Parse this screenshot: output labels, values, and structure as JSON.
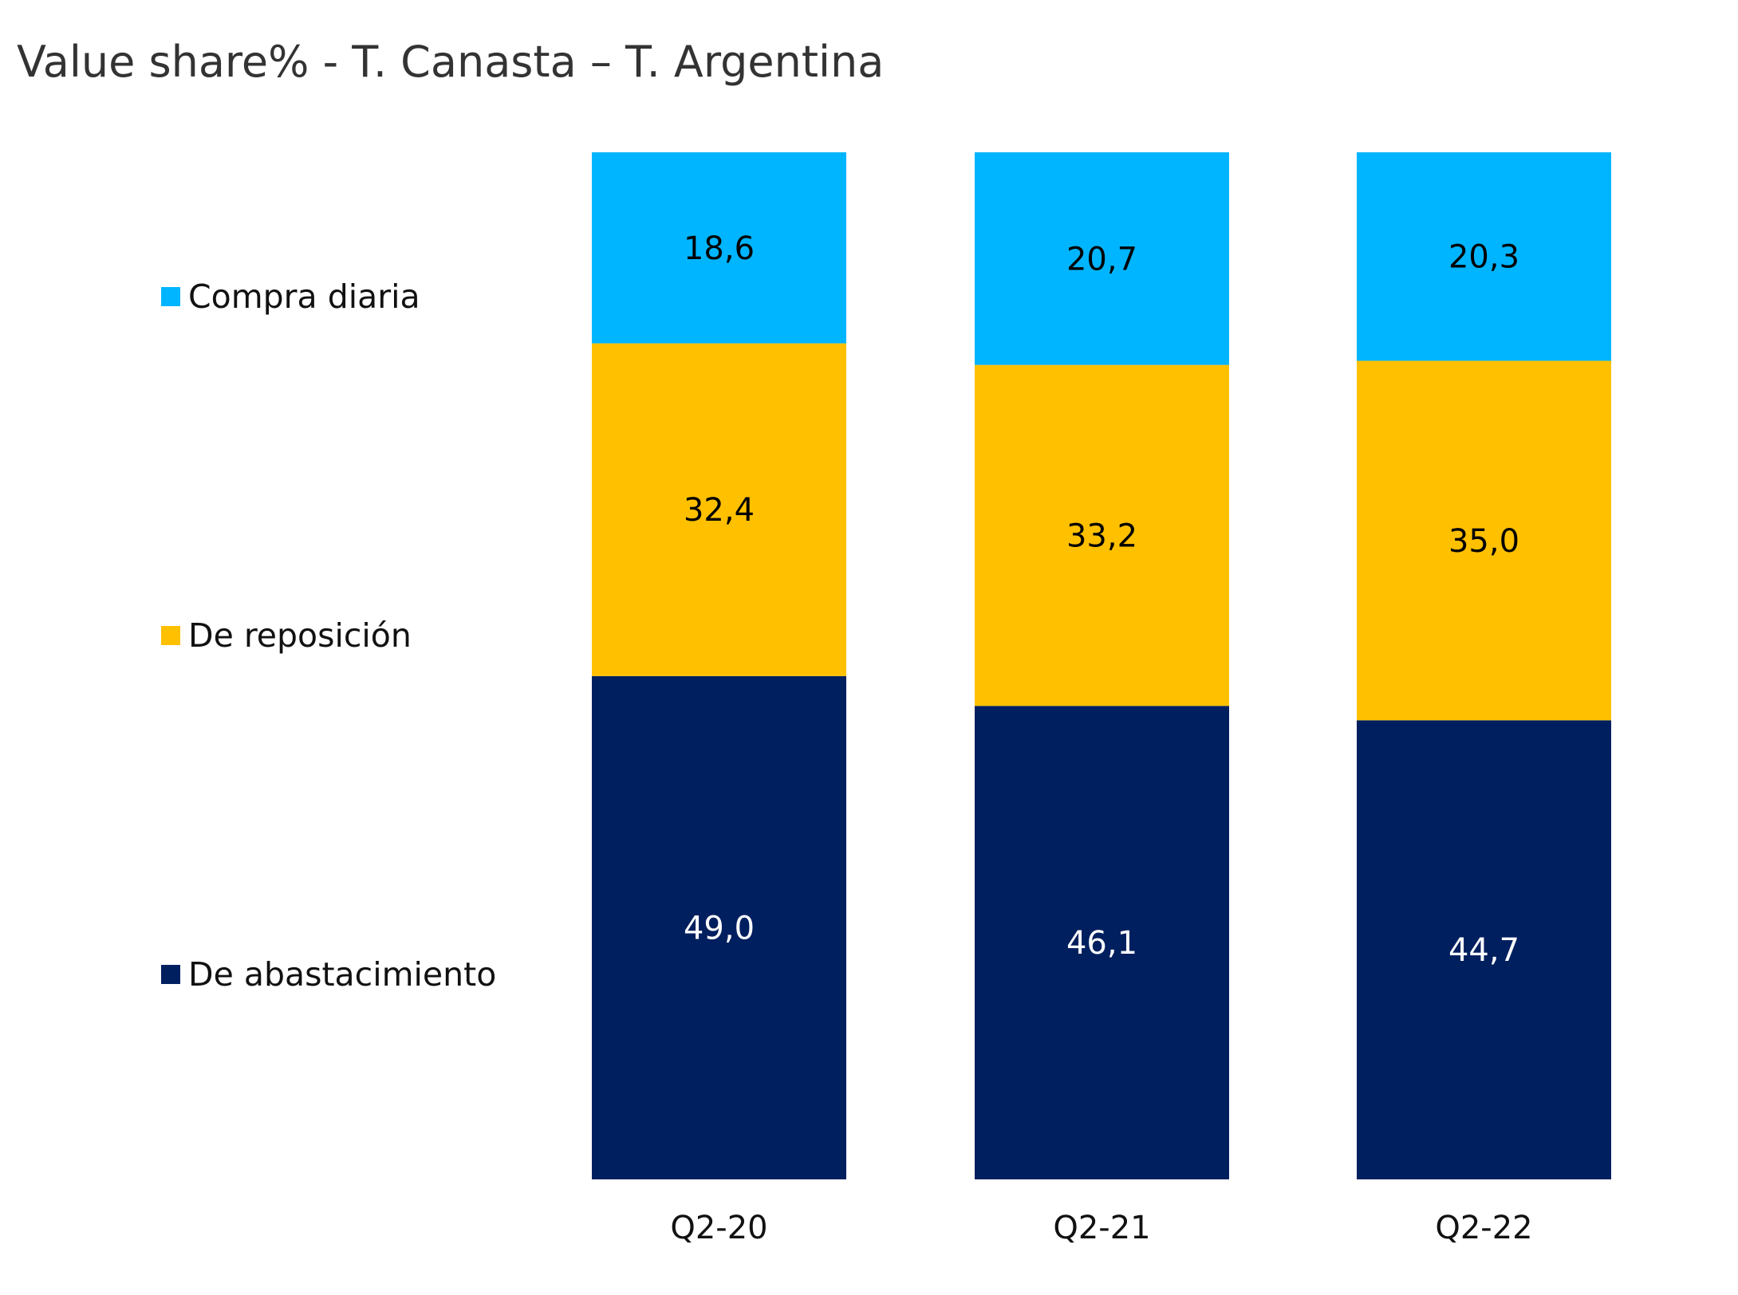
{
  "chart_data": {
    "type": "bar",
    "stacked": true,
    "title": "Value share% - T. Canasta – T. Argentina",
    "categories": [
      "Q2-20",
      "Q2-21",
      "Q2-22"
    ],
    "series": [
      {
        "name": "De abastacimiento",
        "values": [
          49.0,
          46.1,
          44.7
        ],
        "labels": [
          "49,0",
          "46,1",
          "44,7"
        ],
        "color": "#001F5F",
        "label_color": "#ffffff"
      },
      {
        "name": "De reposición",
        "values": [
          32.4,
          33.2,
          35.0
        ],
        "labels": [
          "32,4",
          "33,2",
          "35,0"
        ],
        "color": "#FFC000",
        "label_color": "#000000"
      },
      {
        "name": "Compra diaria",
        "values": [
          18.6,
          20.7,
          20.3
        ],
        "labels": [
          "18,6",
          "20,7",
          "20,3"
        ],
        "color": "#00B5FF",
        "label_color": "#000000"
      }
    ],
    "ylim": [
      0,
      100
    ],
    "grid": false,
    "legend": "left"
  }
}
